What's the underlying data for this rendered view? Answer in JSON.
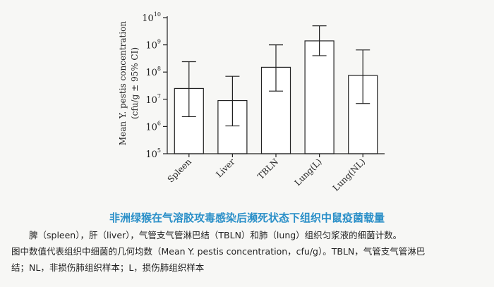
{
  "chart_data": {
    "type": "bar",
    "categories": [
      "Spleen",
      "Liver",
      "TBLN",
      "Lung(L)",
      "Lung(NL)"
    ],
    "values": [
      25000000.0,
      9000000.0,
      150000000.0,
      1400000000.0,
      75000000.0
    ],
    "error_low": [
      2300000.0,
      1050000.0,
      20000000.0,
      400000000.0,
      7000000.0
    ],
    "error_high": [
      240000000.0,
      70000000.0,
      1000000000.0,
      5000000000.0,
      650000000.0
    ],
    "yscale": "log",
    "ylim": [
      100000,
      10000000000
    ],
    "ytick_labels": [
      {
        "base": "10",
        "exp": "5"
      },
      {
        "base": "10",
        "exp": "6"
      },
      {
        "base": "10",
        "exp": "7"
      },
      {
        "base": "10",
        "exp": "8"
      },
      {
        "base": "10",
        "exp": "9"
      },
      {
        "base": "10",
        "exp": "10"
      }
    ],
    "ylabel_line1": "Mean Y. pestis concentration",
    "ylabel_line2": "(cfu/g ± 95% CI)",
    "bar_color": "#ffffff",
    "stroke_color": "#222222"
  },
  "caption": {
    "title": "非洲绿猴在气溶胶攻毒感染后濒死状态下组织中鼠疫菌载量",
    "line1": "脾（spleen），肝（liver），气管支气管淋巴结（TBLN）和肺（lung）组织匀浆液的细菌计数。",
    "line2": "图中数值代表组织中细菌的几何均数（Mean Y. pestis concentration，cfu/g）。TBLN，气管支气管淋巴",
    "line3": "结；NL，非损伤肺组织样本；L，损伤肺组织样本"
  }
}
